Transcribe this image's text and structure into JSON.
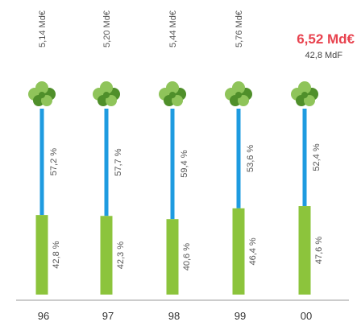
{
  "chart_data": {
    "type": "bar",
    "categories": [
      "96",
      "97",
      "98",
      "99",
      "00"
    ],
    "totals": [
      "5,14 Md€",
      "5,20 Md€",
      "5,44 Md€",
      "5,76 Md€"
    ],
    "highlight": {
      "total": "6,52 Md€",
      "sub": "42,8 MdF"
    },
    "series": [
      {
        "values": [
          42.8,
          42.3,
          40.6,
          46.4,
          47.6
        ],
        "labels": [
          "42,8 %",
          "42,3 %",
          "40,6 %",
          "46,4 %",
          "47,6 %"
        ],
        "color": "#8cc43c"
      },
      {
        "values": [
          57.2,
          57.7,
          59.4,
          53.6,
          52.4
        ],
        "labels": [
          "57,2 %",
          "57,7 %",
          "59,4 %",
          "53,6 %",
          "52,4 %"
        ],
        "color": "#1e9be0"
      }
    ],
    "ylim": [
      0,
      100
    ],
    "colors": {
      "highlight": "#e8434f",
      "axis": "#999999",
      "leaf_dark": "#4f8f2a",
      "leaf_light": "#8fc45a"
    },
    "icon": "clover-icon"
  }
}
